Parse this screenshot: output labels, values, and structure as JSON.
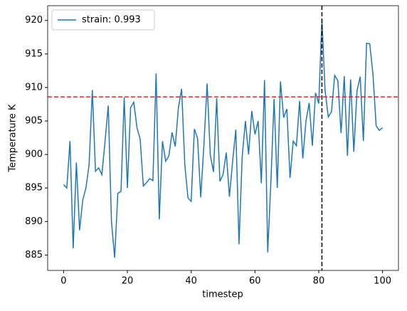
{
  "chart_data": {
    "type": "line",
    "xlabel": "timestep",
    "ylabel": "Temperature K",
    "x": [
      0,
      1,
      2,
      3,
      4,
      5,
      6,
      7,
      8,
      9,
      10,
      11,
      12,
      13,
      14,
      15,
      16,
      17,
      18,
      19,
      20,
      21,
      22,
      23,
      24,
      25,
      26,
      27,
      28,
      29,
      30,
      31,
      32,
      33,
      34,
      35,
      36,
      37,
      38,
      39,
      40,
      41,
      42,
      43,
      44,
      45,
      46,
      47,
      48,
      49,
      50,
      51,
      52,
      53,
      54,
      55,
      56,
      57,
      58,
      59,
      60,
      61,
      62,
      63,
      64,
      65,
      66,
      67,
      68,
      69,
      70,
      71,
      72,
      73,
      74,
      75,
      76,
      77,
      78,
      79,
      80,
      81,
      82,
      83,
      84,
      85,
      86,
      87,
      88,
      89,
      90,
      91,
      92,
      93,
      94,
      95,
      96,
      97,
      98,
      99,
      100
    ],
    "series": [
      {
        "name": "strain: 0.993",
        "color": "#1f77b4",
        "values": [
          895.5,
          895,
          902,
          886,
          898.8,
          888.7,
          893.2,
          895,
          898.5,
          909.6,
          897.5,
          898,
          897,
          902,
          907.3,
          890,
          884.6,
          894.2,
          894.5,
          908.5,
          895,
          907,
          907.8,
          904,
          902.3,
          895.3,
          895.8,
          896.4,
          896.1,
          912.1,
          890.3,
          902,
          899,
          899.8,
          903.3,
          901.2,
          907,
          909.8,
          898.5,
          893.5,
          893,
          903.8,
          902.4,
          893.6,
          901.5,
          910.6,
          899.9,
          897.4,
          908.4,
          896,
          897,
          900.3,
          893.7,
          899,
          903.7,
          886.6,
          899.7,
          905,
          900,
          906.5,
          903,
          905,
          895.7,
          911.1,
          885.4,
          896,
          908.3,
          895,
          910.9,
          905.5,
          906.8,
          896.5,
          902,
          901.3,
          908,
          899.4,
          905,
          907.7,
          901.3,
          909.2,
          907.6,
          920,
          909.5,
          905.6,
          906.4,
          911.8,
          911,
          903.2,
          911.7,
          899.8,
          911.2,
          900.4,
          909.5,
          911.6,
          902,
          916.6,
          916.5,
          912,
          904.3,
          903.6,
          904
        ]
      }
    ],
    "hline": {
      "y": 908.6,
      "color": "#d62728"
    },
    "vline": {
      "x": 81,
      "color": "#000000"
    },
    "xlim": [
      -5,
      105
    ],
    "ylim": [
      882.7,
      922.2
    ],
    "xticks": [
      0,
      20,
      40,
      60,
      80,
      100
    ],
    "yticks": [
      885,
      890,
      895,
      900,
      905,
      910,
      915,
      920
    ],
    "legend": "upper left"
  }
}
